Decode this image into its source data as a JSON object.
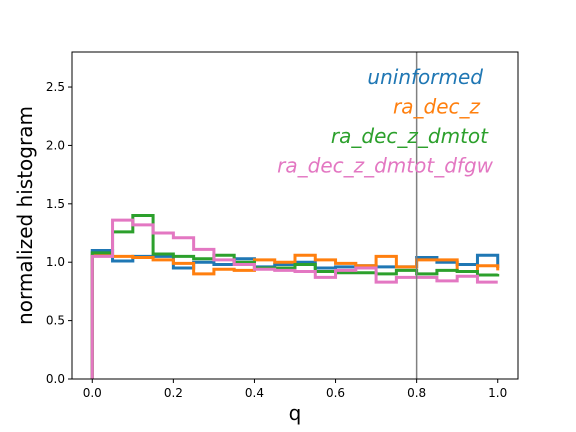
{
  "chart_data": {
    "type": "line",
    "xlabel": "q",
    "ylabel": "normalized histogram",
    "xlim": [
      -0.05,
      1.05
    ],
    "ylim": [
      0.0,
      2.8
    ],
    "xticks": [
      "0.0",
      "0.2",
      "0.4",
      "0.6",
      "0.8",
      "1.0"
    ],
    "yticks": [
      "0.0",
      "0.5",
      "1.0",
      "1.5",
      "2.0",
      "2.5"
    ],
    "vline": 0.8,
    "vline_color": "#808080",
    "legend_position": "top-right",
    "bin_edges": [
      0.0,
      0.05,
      0.1,
      0.15,
      0.2,
      0.25,
      0.3,
      0.35,
      0.4,
      0.45,
      0.5,
      0.55,
      0.6,
      0.65,
      0.7,
      0.75,
      0.8,
      0.85,
      0.9,
      0.95,
      1.0
    ],
    "series": [
      {
        "name": "uninformed",
        "color": "#1f77b4",
        "values": [
          1.1,
          1.01,
          1.05,
          1.05,
          0.95,
          1.0,
          0.98,
          1.03,
          0.96,
          0.98,
          1.0,
          0.95,
          0.96,
          0.97,
          0.96,
          0.96,
          1.04,
          1.0,
          0.98,
          1.06,
          0.95
        ]
      },
      {
        "name": "ra_dec_z",
        "color": "#ff7f0e",
        "values": [
          1.06,
          1.05,
          1.04,
          1.02,
          0.99,
          0.9,
          0.94,
          0.93,
          1.02,
          1.0,
          1.06,
          1.02,
          0.99,
          0.97,
          1.05,
          0.96,
          1.02,
          1.02,
          0.92,
          0.97,
          0.93
        ]
      },
      {
        "name": "ra_dec_z_dmtot",
        "color": "#2ca02c",
        "values": [
          1.08,
          1.26,
          1.4,
          1.07,
          1.05,
          1.03,
          1.06,
          1.0,
          0.95,
          0.95,
          0.98,
          0.92,
          0.91,
          0.91,
          0.9,
          0.93,
          0.9,
          0.93,
          0.92,
          0.89,
          0.9
        ]
      },
      {
        "name": "ra_dec_z_dmtot_dfgw",
        "color": "#e377c2",
        "values": [
          1.05,
          1.36,
          1.32,
          1.25,
          1.21,
          1.11,
          1.02,
          0.98,
          0.94,
          0.93,
          0.92,
          0.87,
          0.93,
          0.95,
          0.83,
          0.87,
          0.87,
          0.84,
          0.88,
          0.83,
          0.83
        ]
      }
    ]
  }
}
